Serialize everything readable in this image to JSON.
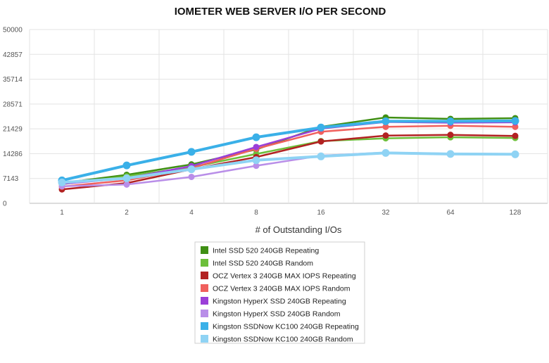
{
  "chart_data": {
    "type": "line",
    "title": "IOMETER WEB SERVER I/O PER SECOND",
    "xlabel": "# of Outstanding I/Os",
    "ylabel": "",
    "categories": [
      "1",
      "2",
      "4",
      "8",
      "16",
      "32",
      "64",
      "128"
    ],
    "yticks": [
      "0",
      "7143",
      "14286",
      "21429",
      "28571",
      "35714",
      "42857",
      "50000"
    ],
    "ylim": [
      0,
      50000
    ],
    "grid": true,
    "legend_position": "bottom-center",
    "series": [
      {
        "name": "Intel SSD 520 240GB Repeating",
        "color": "#3f8f14",
        "values": [
          5800,
          8200,
          11200,
          15500,
          22000,
          24700,
          24300,
          24500
        ]
      },
      {
        "name": "Intel SSD 520 240GB Random",
        "color": "#6dbf3a",
        "values": [
          5500,
          7800,
          10400,
          14200,
          17900,
          18700,
          19000,
          18800
        ]
      },
      {
        "name": "OCZ Vertex 3 240GB MAX IOPS Repeating",
        "color": "#b22222",
        "values": [
          4000,
          5800,
          9800,
          13300,
          17800,
          19500,
          19700,
          19400
        ]
      },
      {
        "name": "OCZ Vertex 3 240GB MAX IOPS Random",
        "color": "#f0605d",
        "values": [
          4800,
          6600,
          10100,
          15700,
          20600,
          22000,
          22300,
          22000
        ]
      },
      {
        "name": "Kingston HyperX SSD 240GB Repeating",
        "color": "#9b3fd8",
        "values": [
          5600,
          7200,
          10700,
          16200,
          21500,
          23400,
          23200,
          23300
        ]
      },
      {
        "name": "Kingston HyperX SSD 240GB Random",
        "color": "#b98ee8",
        "values": [
          4900,
          5400,
          7600,
          10800,
          13700,
          14600,
          14300,
          14200
        ]
      },
      {
        "name": "Kingston SSDNow KC100 240GB Repeating",
        "color": "#3ab0e8",
        "values": [
          6600,
          10900,
          14800,
          19000,
          21800,
          23600,
          23600,
          23700
        ]
      },
      {
        "name": "Kingston SSDNow KC100 240GB Random",
        "color": "#8fd3f4",
        "values": [
          6000,
          7200,
          9800,
          12400,
          13500,
          14500,
          14200,
          14100
        ]
      }
    ]
  }
}
